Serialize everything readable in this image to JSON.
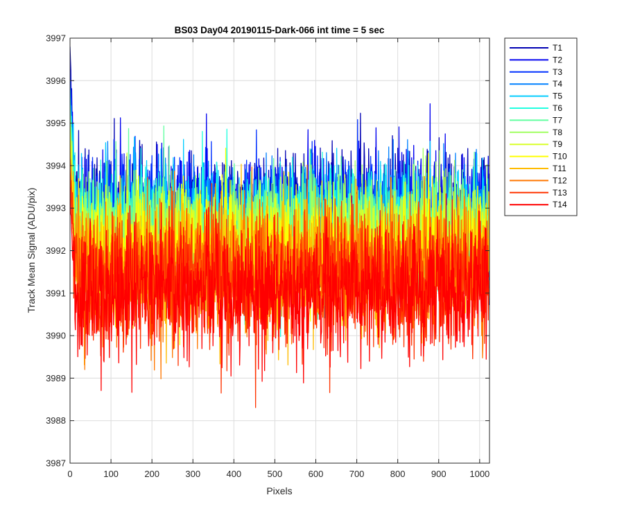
{
  "chart_data": {
    "type": "line",
    "title": "BS03 Day04 20190115-Dark-066 int time = 5 sec",
    "xlabel": "Pixels",
    "ylabel": "Track Mean Signal (ADU/pix)",
    "xlim": [
      0,
      1024
    ],
    "ylim": [
      3987,
      3997
    ],
    "x_ticks": [
      0,
      100,
      200,
      300,
      400,
      500,
      600,
      700,
      800,
      900,
      1000
    ],
    "y_ticks": [
      3987,
      3988,
      3989,
      3990,
      3991,
      3992,
      3993,
      3994,
      3995,
      3996,
      3997
    ],
    "grid": true,
    "legend_position": "outside-top-right",
    "x_count": 1024,
    "series": [
      {
        "name": "T1",
        "color": "#0000b3",
        "mean": 3993.0,
        "spread": 0.7,
        "start_value": 3996.8
      },
      {
        "name": "T2",
        "color": "#0000f0",
        "mean": 3992.9,
        "spread": 0.7,
        "start_value": 3996.5
      },
      {
        "name": "T3",
        "color": "#0030ff",
        "mean": 3992.8,
        "spread": 0.7,
        "start_value": 3996.2
      },
      {
        "name": "T4",
        "color": "#0080ff",
        "mean": 3992.7,
        "spread": 0.7,
        "start_value": 3996.0
      },
      {
        "name": "T5",
        "color": "#00ccff",
        "mean": 3992.6,
        "spread": 0.7,
        "start_value": 3995.8
      },
      {
        "name": "T6",
        "color": "#20ffe0",
        "mean": 3992.5,
        "spread": 0.7,
        "start_value": 3995.6
      },
      {
        "name": "T7",
        "color": "#60ffa0",
        "mean": 3992.4,
        "spread": 0.7,
        "start_value": 3995.4
      },
      {
        "name": "T8",
        "color": "#a0ff60",
        "mean": 3992.3,
        "spread": 0.7,
        "start_value": 3995.2
      },
      {
        "name": "T9",
        "color": "#d8ff28",
        "mean": 3992.1,
        "spread": 0.7,
        "start_value": 3995.0
      },
      {
        "name": "T10",
        "color": "#ffff00",
        "mean": 3991.9,
        "spread": 0.7,
        "start_value": 3994.8
      },
      {
        "name": "T11",
        "color": "#ffbb00",
        "mean": 3991.7,
        "spread": 0.75,
        "start_value": 3994.5
      },
      {
        "name": "T12",
        "color": "#ff7700",
        "mean": 3991.5,
        "spread": 0.75,
        "start_value": 3994.2
      },
      {
        "name": "T13",
        "color": "#ff3300",
        "mean": 3991.3,
        "spread": 0.8,
        "start_value": 3993.9
      },
      {
        "name": "T14",
        "color": "#ff0000",
        "mean": 3991.1,
        "spread": 0.8,
        "start_value": 3993.5
      }
    ]
  }
}
